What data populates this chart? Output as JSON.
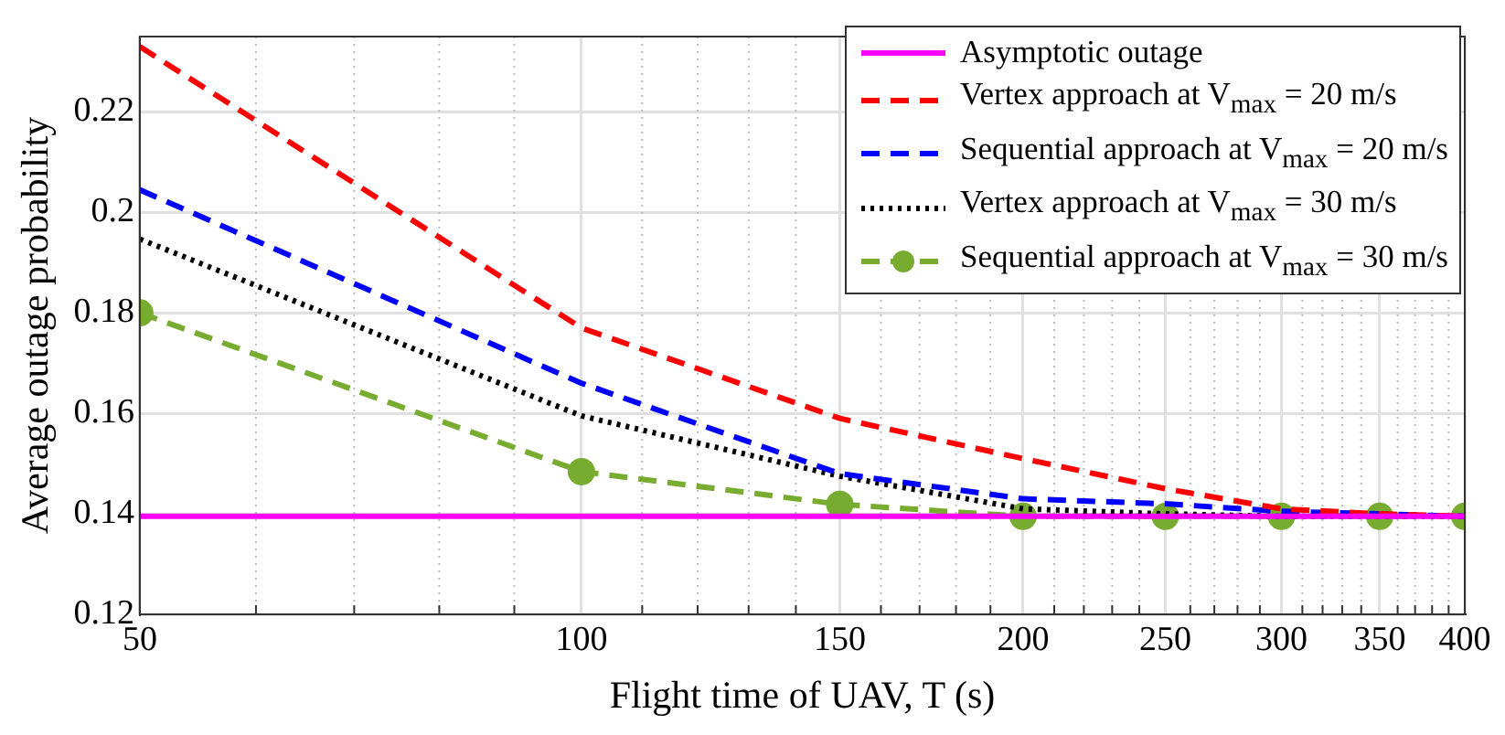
{
  "chart_data": {
    "type": "line",
    "xlabel": "Flight time of UAV, T (s)",
    "ylabel": "Average outage probability",
    "log": "x",
    "grid": true,
    "legend": "top right",
    "x": [
      50,
      100,
      150,
      200,
      250,
      300,
      350,
      400
    ],
    "xlim": [
      50,
      400
    ],
    "xticks": [
      50,
      100,
      150,
      200,
      250,
      300,
      350,
      400
    ],
    "ylim": [
      0.12,
      0.235
    ],
    "yticks": [
      0.12,
      0.14,
      0.16,
      0.18,
      0.2,
      0.22
    ],
    "series": [
      {
        "name": "Asymptotic outage",
        "color": "#ff00ff",
        "line_style": "solid",
        "marker": "none",
        "values": [
          0.1395,
          0.1395,
          0.1395,
          0.1395,
          0.1395,
          0.1395,
          0.1395,
          0.1395
        ]
      },
      {
        "name": "Vertex approach at V$_{max}$ = 20 m/s",
        "color": "#ff0000",
        "line_style": "dashed",
        "marker": "none",
        "values": [
          0.233,
          0.177,
          0.159,
          0.151,
          0.145,
          0.141,
          0.14,
          0.1395
        ]
      },
      {
        "name": "Sequential approach at V$_{max}$ = 20 m/s",
        "color": "#0000ff",
        "line_style": "dashed",
        "marker": "none",
        "values": [
          0.2045,
          0.166,
          0.148,
          0.143,
          0.142,
          0.1405,
          0.14,
          0.1395
        ]
      },
      {
        "name": "Vertex approach at V$_{max}$ = 30 m/s",
        "color": "#000000",
        "line_style": "dotted",
        "marker": "none",
        "values": [
          0.1947,
          0.1595,
          0.1475,
          0.141,
          0.14,
          0.1395,
          0.1395,
          0.1395
        ]
      },
      {
        "name": "Sequential approach at V$_{max}$ = 30 m/s",
        "color": "#77ac30",
        "line_style": "dashed",
        "marker": "circle",
        "values": [
          0.18,
          0.1484,
          0.1419,
          0.1395,
          0.1395,
          0.1395,
          0.1395,
          0.1395
        ]
      }
    ]
  }
}
